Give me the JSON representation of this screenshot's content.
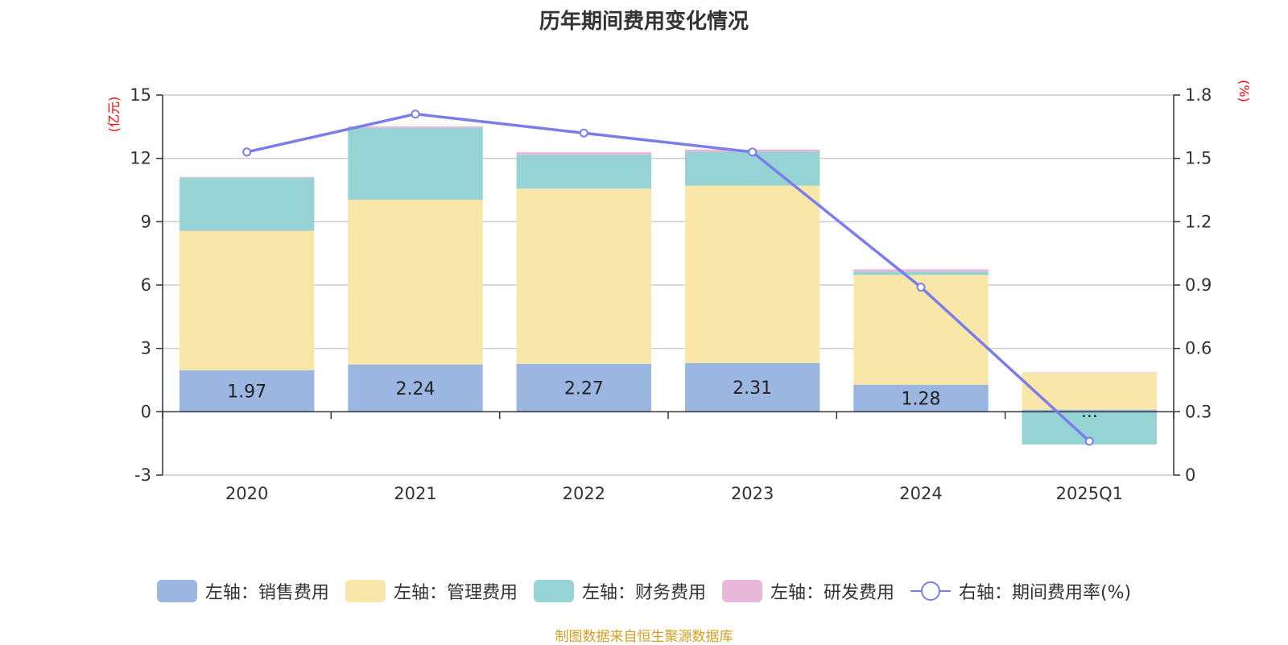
{
  "chart_data": {
    "type": "bar",
    "title": "历年期间费用变化情况",
    "categories": [
      "2020",
      "2021",
      "2022",
      "2023",
      "2024",
      "2025Q1"
    ],
    "left_axis": {
      "unit": "(亿元)",
      "ylim": [
        -3,
        15
      ],
      "ticks": [
        -3,
        0,
        3,
        6,
        9,
        12,
        15
      ]
    },
    "right_axis": {
      "unit": "(%)",
      "ylim": [
        0,
        1.8
      ],
      "ticks": [
        0,
        0.3,
        0.6,
        0.9,
        1.2,
        1.5,
        1.8
      ]
    },
    "series": [
      {
        "name": "左轴：销售费用",
        "axis": "left",
        "stack": true,
        "color": "#9bb7e1",
        "values": [
          1.97,
          2.24,
          2.27,
          2.31,
          1.28,
          0.1
        ],
        "data_labels": [
          "1.97",
          "2.24",
          "2.27",
          "2.31",
          "1.28",
          "..."
        ]
      },
      {
        "name": "左轴：管理费用",
        "axis": "left",
        "stack": true,
        "color": "#f8e7a8",
        "values": [
          6.6,
          7.8,
          8.3,
          8.4,
          5.2,
          1.75
        ]
      },
      {
        "name": "左轴：财务费用",
        "axis": "left",
        "stack": true,
        "color": "#96d3d4",
        "values": [
          2.5,
          3.4,
          1.6,
          1.6,
          0.15,
          -1.55
        ]
      },
      {
        "name": "左轴：研发费用",
        "axis": "left",
        "stack": true,
        "color": "#e8b7d9",
        "values": [
          0.05,
          0.08,
          0.12,
          0.11,
          0.12,
          0.02
        ]
      },
      {
        "name": "右轴：期间费用率(%)",
        "axis": "right",
        "type": "line",
        "color": "#7b7ee8",
        "values": [
          1.53,
          1.71,
          1.62,
          1.53,
          0.89,
          0.16
        ]
      }
    ],
    "grid": true,
    "legend_position": "bottom"
  },
  "source_note": "制图数据来自恒生聚源数据库"
}
